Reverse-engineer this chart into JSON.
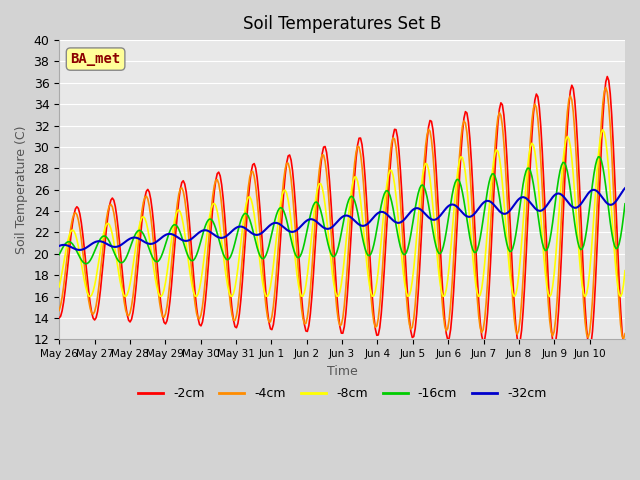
{
  "title": "Soil Temperatures Set B",
  "xlabel": "Time",
  "ylabel": "Soil Temperature (C)",
  "ylim": [
    12,
    40
  ],
  "yticks": [
    12,
    14,
    16,
    18,
    20,
    22,
    24,
    26,
    28,
    30,
    32,
    34,
    36,
    38,
    40
  ],
  "fig_bg_color": "#d3d3d3",
  "ax_bg_color": "#e8e8e8",
  "grid_color": "#ffffff",
  "annotation": "BA_met",
  "annotation_color": "#8b0000",
  "annotation_bg": "#ffff99",
  "series": {
    "neg2cm": {
      "label": "-2cm",
      "color": "#ff0000",
      "lw": 1.2
    },
    "neg4cm": {
      "label": "-4cm",
      "color": "#ff8c00",
      "lw": 1.2
    },
    "neg8cm": {
      "label": "-8cm",
      "color": "#ffff00",
      "lw": 1.2
    },
    "neg16cm": {
      "label": "-16cm",
      "color": "#00cc00",
      "lw": 1.2
    },
    "neg32cm": {
      "label": "-32cm",
      "color": "#0000cc",
      "lw": 1.5
    }
  },
  "x_tick_labels": [
    "May 26",
    "May 27",
    "May 28",
    "May 29",
    "May 30",
    "May 31",
    "Jun 1",
    "Jun 2",
    "Jun 3",
    "Jun 4",
    "Jun 5",
    "Jun 6",
    "Jun 7",
    "Jun 8",
    "Jun 9",
    "Jun 10"
  ],
  "n_days": 16,
  "pts_per_day": 24
}
